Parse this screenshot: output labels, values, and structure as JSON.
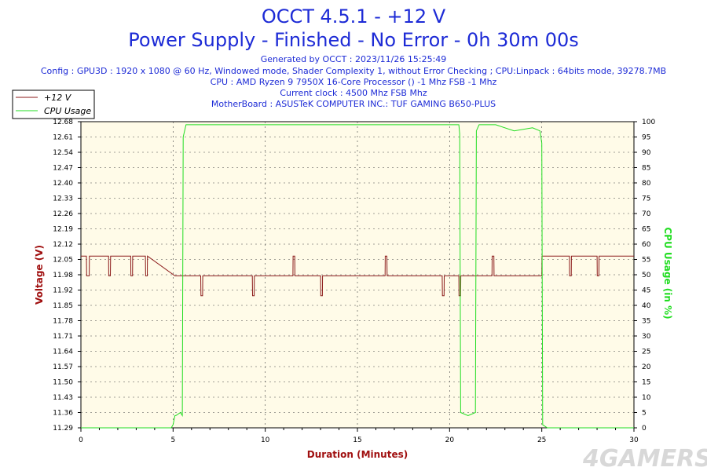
{
  "header": {
    "title": "OCCT 4.5.1 - +12 V",
    "subtitle": "Power Supply - Finished - No Error - 0h 30m 00s",
    "info_lines": [
      "Generated by OCCT : 2023/11/26 15:25:49",
      "Config : GPU3D : 1920 x 1080 @ 60 Hz, Windowed mode, Shader Complexity 1, without Error Checking ; CPU:Linpack : 64bits mode, 39278.7MB",
      "CPU : AMD Ryzen 9 7950X 16-Core Processor () -1 Mhz FSB -1 Mhz",
      "Current clock : 4500 Mhz FSB  Mhz",
      "MotherBoard : ASUSTeK COMPUTER INC.: TUF GAMING B650-PLUS"
    ]
  },
  "watermark": "4GAMERS",
  "colors": {
    "voltage": "#8b1a1a",
    "cpu": "#22dd22",
    "plot_bg": "#fffbe8",
    "title": "#1d2bd6"
  },
  "chart_data": {
    "type": "line",
    "xlabel": "Duration (Minutes)",
    "ylabel_left": "Voltage (V)",
    "ylabel_right": "CPU Usage (in %)",
    "xlim": [
      0,
      30
    ],
    "ylim_left": [
      11.29,
      12.68
    ],
    "ylim_right": [
      0,
      100
    ],
    "x_ticks": [
      "0",
      "5",
      "10",
      "15",
      "20",
      "25",
      "30"
    ],
    "y_ticks_left": [
      "12.68",
      "12.61",
      "12.54",
      "12.47",
      "12.40",
      "12.33",
      "12.26",
      "12.19",
      "12.12",
      "12.05",
      "11.98",
      "11.92",
      "11.85",
      "11.78",
      "11.71",
      "11.64",
      "11.57",
      "11.50",
      "11.43",
      "11.36",
      "11.29"
    ],
    "y_ticks_right": [
      "100",
      "95",
      "90",
      "85",
      "80",
      "75",
      "70",
      "65",
      "60",
      "55",
      "50",
      "45",
      "40",
      "35",
      "30",
      "25",
      "20",
      "15",
      "10",
      "5",
      "0"
    ],
    "grid": true,
    "legend_position": "top-left",
    "series": [
      {
        "name": "+12 V",
        "axis": "left",
        "x": [
          0,
          0.3,
          0.31,
          0.45,
          0.46,
          1.5,
          1.51,
          1.6,
          1.61,
          2.7,
          2.71,
          2.8,
          2.81,
          3.5,
          3.51,
          3.6,
          3.61,
          5.1,
          5.11,
          6.5,
          6.51,
          6.6,
          6.61,
          9.3,
          9.31,
          9.4,
          9.41,
          11.5,
          11.51,
          11.6,
          11.61,
          13.0,
          13.01,
          13.1,
          13.11,
          16.5,
          16.51,
          16.6,
          16.61,
          19.6,
          19.61,
          19.7,
          19.71,
          20.5,
          20.51,
          20.6,
          20.61,
          22.3,
          22.31,
          22.4,
          22.41,
          24.9,
          25.0,
          25.01,
          26.5,
          26.51,
          26.6,
          26.61,
          28.0,
          28.01,
          28.1,
          28.11,
          30
        ],
        "values": [
          12.07,
          12.07,
          11.98,
          11.98,
          12.07,
          12.07,
          11.98,
          11.98,
          12.07,
          12.07,
          11.98,
          11.98,
          12.07,
          12.07,
          11.98,
          11.98,
          12.07,
          11.98,
          11.98,
          11.98,
          11.89,
          11.89,
          11.98,
          11.98,
          11.89,
          11.89,
          11.98,
          11.98,
          12.07,
          12.07,
          11.98,
          11.98,
          11.89,
          11.89,
          11.98,
          11.98,
          12.07,
          12.07,
          11.98,
          11.98,
          11.89,
          11.89,
          11.98,
          11.98,
          11.89,
          11.89,
          11.98,
          11.98,
          12.07,
          12.07,
          11.98,
          11.98,
          11.98,
          12.07,
          12.07,
          11.98,
          11.98,
          12.07,
          12.07,
          11.98,
          11.98,
          12.07,
          12.07
        ]
      },
      {
        "name": "CPU Usage",
        "axis": "right",
        "x": [
          0,
          4.9,
          5.0,
          5.1,
          5.15,
          5.4,
          5.5,
          5.55,
          5.7,
          6.0,
          8.0,
          10.0,
          12.0,
          14.0,
          16.0,
          18.0,
          20.0,
          20.5,
          20.55,
          20.6,
          21.0,
          21.4,
          21.45,
          21.6,
          22.5,
          23.5,
          24.5,
          24.9,
          25.0,
          25.05,
          25.3,
          30
        ],
        "values": [
          0,
          0,
          1,
          4,
          4,
          5,
          4,
          95,
          99,
          99,
          99,
          99,
          99,
          99,
          99,
          99,
          99,
          99,
          96,
          5,
          4,
          5,
          97,
          99,
          99,
          97,
          98,
          97,
          93,
          1,
          0,
          0
        ]
      }
    ]
  }
}
